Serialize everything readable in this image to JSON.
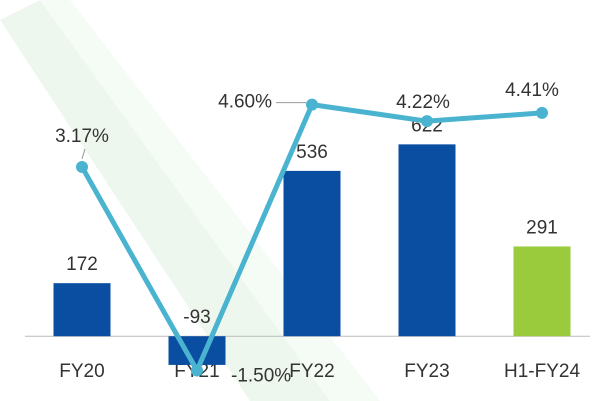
{
  "chart_data": {
    "type": "bar",
    "categories": [
      "FY20",
      "FY21",
      "FY22",
      "FY23",
      "H1-FY24"
    ],
    "ylim": [
      -210,
      1090
    ],
    "y2lim": [
      -2.2,
      7.0
    ],
    "series": [
      {
        "type": "bar",
        "values": [
          172,
          -93,
          536,
          622,
          291
        ],
        "colors": [
          "#0a4ea2",
          "#0a4ea2",
          "#0a4ea2",
          "#0a4ea2",
          "#9acb3c"
        ]
      },
      {
        "type": "line",
        "axis": "y2",
        "color": "#4ab4d0",
        "values": [
          3.17,
          -1.5,
          4.6,
          4.22,
          4.41
        ],
        "value_labels": [
          "3.17%",
          "-1.50%",
          "4.60%",
          "4.22%",
          "4.41%"
        ]
      }
    ]
  }
}
